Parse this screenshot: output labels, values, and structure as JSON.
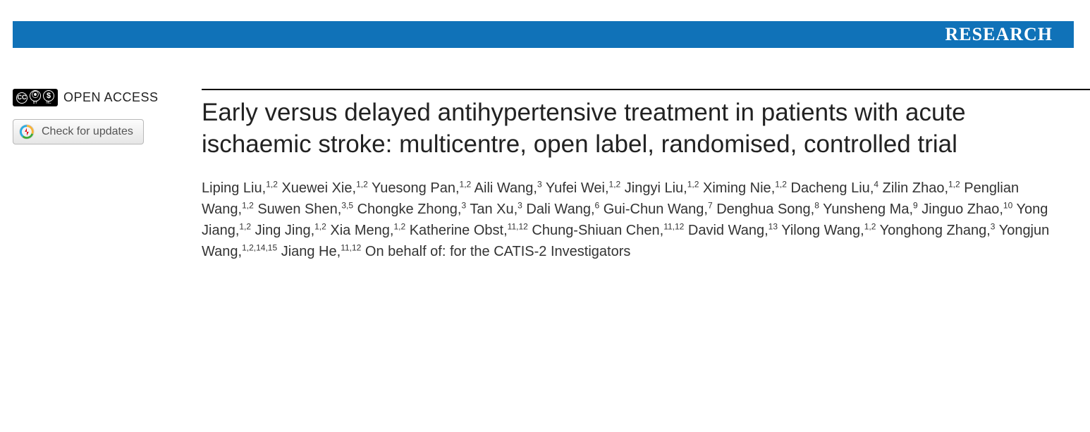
{
  "header": {
    "section_label": "RESEARCH",
    "bar_color": "#1072b8",
    "text_color": "#ffffff"
  },
  "sidebar": {
    "open_access_label": "OPEN ACCESS",
    "cc_license": {
      "cc": "cc",
      "by": "BY",
      "nc": "NC"
    },
    "check_updates_label": "Check for updates"
  },
  "article": {
    "title": "Early versus delayed antihypertensive treatment in patients with acute ischaemic stroke: multicentre, open label, randomised, controlled trial",
    "authors": [
      {
        "name": "Liping Liu",
        "affil": "1,2"
      },
      {
        "name": "Xuewei Xie",
        "affil": "1,2"
      },
      {
        "name": "Yuesong Pan",
        "affil": "1,2"
      },
      {
        "name": "Aili Wang",
        "affil": "3"
      },
      {
        "name": "Yufei Wei",
        "affil": "1,2"
      },
      {
        "name": "Jingyi Liu",
        "affil": "1,2"
      },
      {
        "name": "Ximing Nie",
        "affil": "1,2"
      },
      {
        "name": "Dacheng Liu",
        "affil": "4"
      },
      {
        "name": "Zilin Zhao",
        "affil": "1,2"
      },
      {
        "name": "Penglian Wang",
        "affil": "1,2"
      },
      {
        "name": "Suwen Shen",
        "affil": "3,5"
      },
      {
        "name": "Chongke Zhong",
        "affil": "3"
      },
      {
        "name": "Tan Xu",
        "affil": "3"
      },
      {
        "name": "Dali Wang",
        "affil": "6"
      },
      {
        "name": "Gui-Chun Wang",
        "affil": "7"
      },
      {
        "name": "Denghua Song",
        "affil": "8"
      },
      {
        "name": "Yunsheng Ma",
        "affil": "9"
      },
      {
        "name": "Jinguo Zhao",
        "affil": "10"
      },
      {
        "name": "Yong Jiang",
        "affil": "1,2"
      },
      {
        "name": "Jing Jing",
        "affil": "1,2"
      },
      {
        "name": "Xia Meng",
        "affil": "1,2"
      },
      {
        "name": "Katherine Obst",
        "affil": "11,12"
      },
      {
        "name": "Chung-Shiuan Chen",
        "affil": "11,12"
      },
      {
        "name": "David Wang",
        "affil": "13"
      },
      {
        "name": "Yilong Wang",
        "affil": "1,2"
      },
      {
        "name": "Yonghong Zhang",
        "affil": "3"
      },
      {
        "name": "Yongjun Wang",
        "affil": "1,2,14,15"
      },
      {
        "name": "Jiang He",
        "affil": "11,12"
      }
    ],
    "on_behalf": "On behalf of: for the CATIS-2 Investigators"
  },
  "colors": {
    "background": "#ffffff",
    "text": "#222222",
    "author_text": "#333333",
    "rule": "#000000"
  }
}
